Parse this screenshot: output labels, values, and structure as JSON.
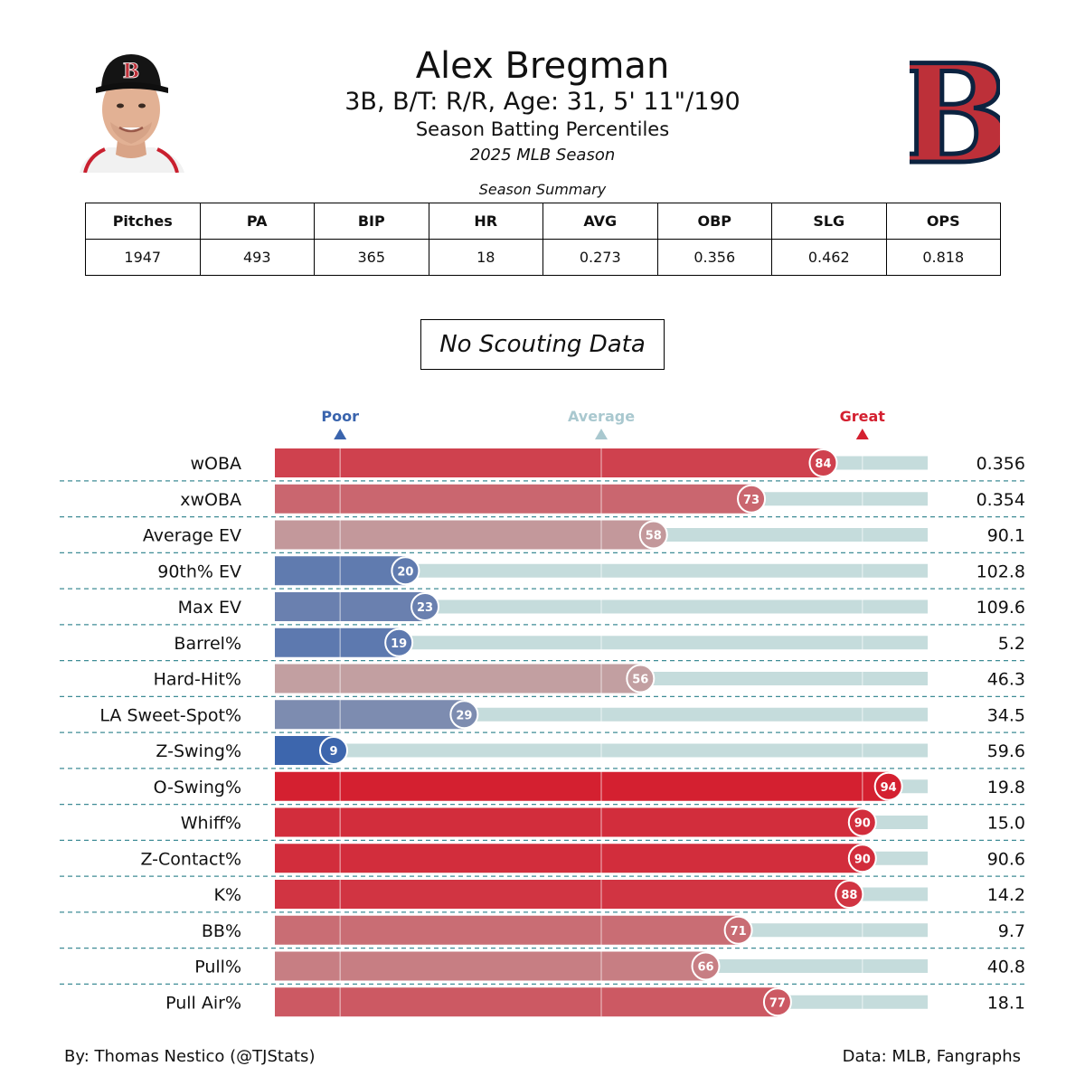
{
  "header": {
    "name": "Alex Bregman",
    "bio": "3B, B/T: R/R, Age: 31, 5' 11\"/190",
    "title": "Season Batting Percentiles",
    "season": "2025 MLB Season"
  },
  "summary": {
    "caption": "Season Summary",
    "columns": [
      "Pitches",
      "PA",
      "BIP",
      "HR",
      "AVG",
      "OBP",
      "SLG",
      "OPS"
    ],
    "values": [
      "1947",
      "493",
      "365",
      "18",
      "0.273",
      "0.356",
      "0.462",
      "0.818"
    ]
  },
  "scouting": {
    "label": "No Scouting Data"
  },
  "legend": {
    "poor": "Poor",
    "average": "Average",
    "great": "Great",
    "poor_color": "#3a64ad",
    "average_color": "#a9c8cf",
    "great_color": "#d42030"
  },
  "colors": {
    "track": "#c5dcdc",
    "divider": "#3f8c96",
    "team_red": "#bd3039",
    "team_navy": "#0c2340"
  },
  "chart_data": {
    "type": "bar",
    "orientation": "horizontal",
    "xlim": [
      0,
      100
    ],
    "reference_lines": [
      10,
      50,
      90
    ],
    "categories": [
      "wOBA",
      "xwOBA",
      "Average EV",
      "90th% EV",
      "Max EV",
      "Barrel%",
      "Hard-Hit%",
      "LA Sweet-Spot%",
      "Z-Swing%",
      "O-Swing%",
      "Whiff%",
      "Z-Contact%",
      "K%",
      "BB%",
      "Pull%",
      "Pull Air%"
    ],
    "percentiles": [
      84,
      73,
      58,
      20,
      23,
      19,
      56,
      29,
      9,
      94,
      90,
      90,
      88,
      71,
      66,
      77
    ],
    "stat_values": [
      "0.356",
      "0.354",
      "90.1",
      "102.8",
      "109.6",
      "5.2",
      "46.3",
      "34.5",
      "59.6",
      "19.8",
      "15.0",
      "90.6",
      "14.2",
      "9.7",
      "40.8",
      "18.1"
    ]
  },
  "footer": {
    "credit": "By: Thomas Nestico (@TJStats)",
    "source": "Data: MLB, Fangraphs"
  }
}
